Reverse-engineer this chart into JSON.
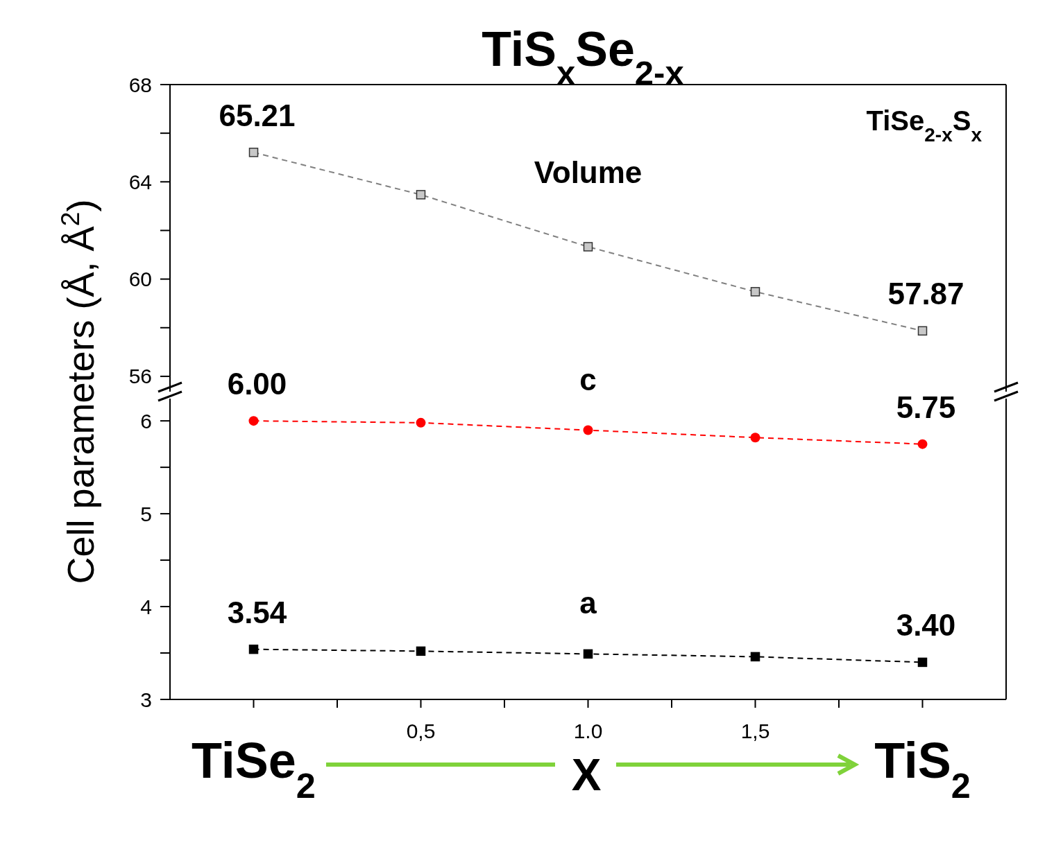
{
  "chart_data": [
    {
      "type": "line",
      "title": "TiS$_{x}$Se$_{2-x}$",
      "ylabel": "Cell parameters (Å, Å$^{2}$)",
      "annotations": [
        "TiSe$_{2-x}$S$_{x}$"
      ],
      "x": [
        0,
        0.5,
        1,
        1.5,
        2
      ],
      "xlim": [
        -0.25,
        2.25
      ],
      "ylim": [
        55.37,
        68
      ],
      "yticks": [
        56,
        {
          "value": 58,
          "label": null
        },
        60,
        {
          "value": 62,
          "label": null
        },
        64,
        {
          "value": 66,
          "label": null
        },
        68
      ],
      "tick_labels": "y",
      "line_style": "dashed",
      "series": [
        {
          "name": "Volume",
          "color": "#808080",
          "marker": "square",
          "values": [
            65.21,
            63.47,
            61.33,
            59.48,
            57.87
          ],
          "value_labels": [
            "65.21",
            null,
            null,
            null,
            "57.87"
          ]
        }
      ]
    },
    {
      "type": "line",
      "xlabel": "X",
      "annotations": [
        "TiSe$_{2}$",
        "TiS$_{2}$"
      ],
      "x": [
        0,
        0.5,
        1,
        1.5,
        2
      ],
      "xlim": [
        -0.25,
        2.25
      ],
      "xticks": [
        {
          "value": 0,
          "label": null
        },
        {
          "value": 0.25,
          "label": null
        },
        {
          "value": 0.5,
          "label": "0,5"
        },
        {
          "value": 0.75,
          "label": null
        },
        {
          "value": 1,
          "label": "1.0"
        },
        {
          "value": 1.25,
          "label": null
        },
        {
          "value": 1.5,
          "label": "1,5"
        },
        {
          "value": 1.75,
          "label": null
        },
        {
          "value": 2,
          "label": null
        }
      ],
      "ylim": [
        3,
        6.24
      ],
      "yticks": [
        3,
        {
          "value": 3.5,
          "label": null
        },
        4,
        {
          "value": 4.5,
          "label": null
        },
        5,
        {
          "value": 5.5,
          "label": null
        },
        6
      ],
      "line_style": "dashed",
      "series": [
        {
          "name": "c",
          "color": "#ff0000",
          "marker": "circle",
          "values": [
            6.0,
            5.98,
            5.9,
            5.82,
            5.75
          ],
          "value_labels": [
            "6.00",
            null,
            null,
            null,
            "5.75"
          ]
        },
        {
          "name": "a",
          "color": "#000000",
          "marker": "square",
          "values": [
            3.54,
            3.52,
            3.49,
            3.46,
            3.4
          ],
          "value_labels": [
            "3.54",
            null,
            null,
            null,
            "3.40"
          ]
        }
      ]
    }
  ]
}
